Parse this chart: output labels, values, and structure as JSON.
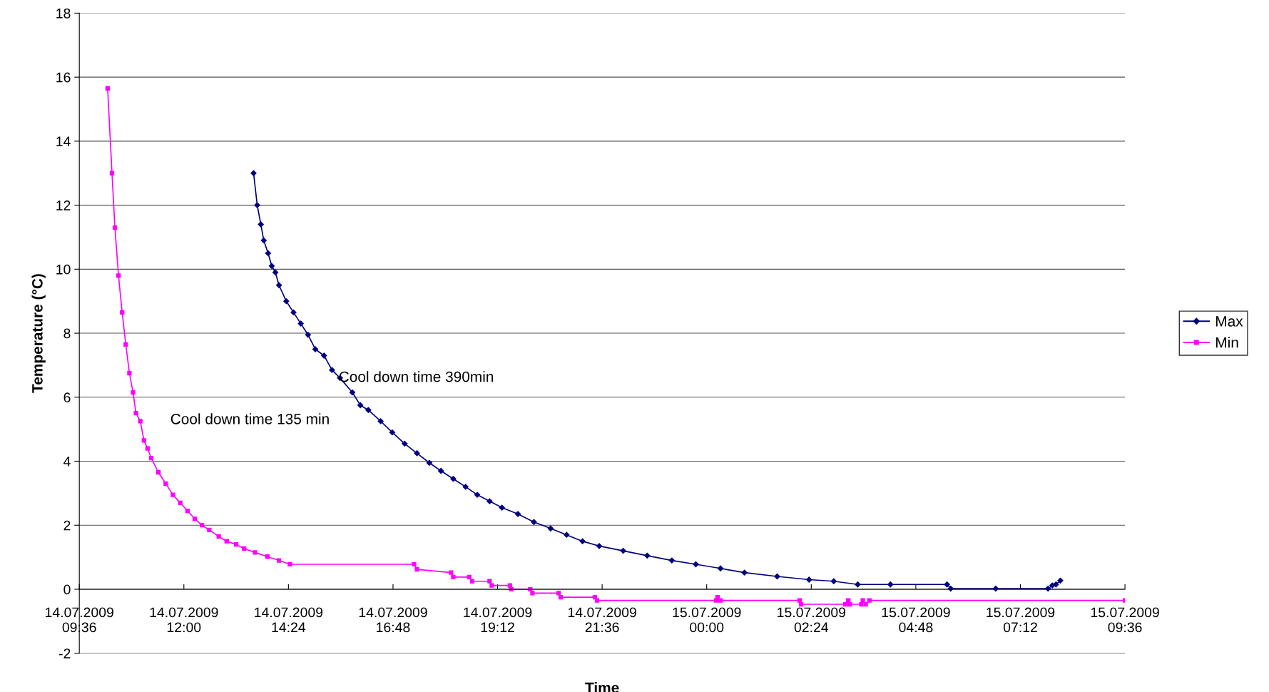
{
  "chart_data": {
    "type": "line",
    "xlabel": "Time",
    "ylabel": "Temperature (°C)",
    "annotations": [
      "Cool down time 390min",
      "Cool down time 135 min"
    ],
    "xlim": [
      "2009-07-14T09:36",
      "2009-07-15T09:36"
    ],
    "xticks": [
      {
        "value": "2009-07-14T09:36",
        "label": "14.07.2009\n09:36"
      },
      {
        "value": "2009-07-14T12:00",
        "label": "14.07.2009\n12:00"
      },
      {
        "value": "2009-07-14T14:24",
        "label": "14.07.2009\n14:24"
      },
      {
        "value": "2009-07-14T16:48",
        "label": "14.07.2009\n16:48"
      },
      {
        "value": "2009-07-14T19:12",
        "label": "14.07.2009\n19:12"
      },
      {
        "value": "2009-07-14T21:36",
        "label": "14.07.2009\n21:36"
      },
      {
        "value": "2009-07-15T00:00",
        "label": "15.07.2009\n00:00"
      },
      {
        "value": "2009-07-15T02:24",
        "label": "15.07.2009\n02:24"
      },
      {
        "value": "2009-07-15T04:48",
        "label": "15.07.2009\n04:48"
      },
      {
        "value": "2009-07-15T07:12",
        "label": "15.07.2009\n07:12"
      },
      {
        "value": "2009-07-15T09:36",
        "label": "15.07.2009\n09:36"
      }
    ],
    "ylim": [
      -2,
      18
    ],
    "yticks": [
      -2,
      0,
      2,
      4,
      6,
      8,
      10,
      12,
      14,
      16,
      18
    ],
    "grid": "y",
    "legend": "right",
    "series": [
      {
        "name": "Max",
        "color": "#000080",
        "marker": "diamond",
        "x": [
          "2009-07-14T13:36",
          "2009-07-14T13:41",
          "2009-07-14T13:46",
          "2009-07-14T13:50",
          "2009-07-14T13:56",
          "2009-07-14T14:01",
          "2009-07-14T14:06",
          "2009-07-14T14:11",
          "2009-07-14T14:21",
          "2009-07-14T14:31",
          "2009-07-14T14:41",
          "2009-07-14T14:51",
          "2009-07-14T15:01",
          "2009-07-14T15:13",
          "2009-07-14T15:24",
          "2009-07-14T15:35",
          "2009-07-14T15:52",
          "2009-07-14T16:03",
          "2009-07-14T16:14",
          "2009-07-14T16:31",
          "2009-07-14T16:47",
          "2009-07-14T17:04",
          "2009-07-14T17:21",
          "2009-07-14T17:38",
          "2009-07-14T17:54",
          "2009-07-14T18:11",
          "2009-07-14T18:28",
          "2009-07-14T18:44",
          "2009-07-14T19:01",
          "2009-07-14T19:18",
          "2009-07-14T19:40",
          "2009-07-14T20:02",
          "2009-07-14T20:25",
          "2009-07-14T20:47",
          "2009-07-14T21:09",
          "2009-07-14T21:32",
          "2009-07-14T22:05",
          "2009-07-14T22:38",
          "2009-07-14T23:12",
          "2009-07-14T23:45",
          "2009-07-15T00:19",
          "2009-07-15T00:52",
          "2009-07-15T01:37",
          "2009-07-15T02:21",
          "2009-07-15T02:55",
          "2009-07-15T03:28",
          "2009-07-15T04:13",
          "2009-07-15T05:31",
          "2009-07-15T05:36",
          "2009-07-15T06:38",
          "2009-07-15T07:50",
          "2009-07-15T07:56",
          "2009-07-15T08:01",
          "2009-07-15T08:07"
        ],
        "values": [
          13.0,
          12.0,
          11.4,
          10.9,
          10.5,
          10.1,
          9.9,
          9.5,
          9.0,
          8.65,
          8.3,
          7.95,
          7.5,
          7.3,
          6.85,
          6.6,
          6.15,
          5.75,
          5.6,
          5.25,
          4.9,
          4.55,
          4.25,
          3.95,
          3.7,
          3.45,
          3.2,
          2.95,
          2.75,
          2.55,
          2.35,
          2.1,
          1.9,
          1.7,
          1.5,
          1.35,
          1.2,
          1.05,
          0.9,
          0.78,
          0.65,
          0.52,
          0.4,
          0.3,
          0.25,
          0.15,
          0.15,
          0.15,
          0.02,
          0.02,
          0.02,
          0.12,
          0.15,
          0.27
        ]
      },
      {
        "name": "Min",
        "color": "#ff00ff",
        "marker": "square",
        "x": [
          "2009-07-14T10:15",
          "2009-07-14T10:21",
          "2009-07-14T10:25",
          "2009-07-14T10:30",
          "2009-07-14T10:35",
          "2009-07-14T10:40",
          "2009-07-14T10:45",
          "2009-07-14T10:50",
          "2009-07-14T10:54",
          "2009-07-14T11:00",
          "2009-07-14T11:05",
          "2009-07-14T11:10",
          "2009-07-14T11:15",
          "2009-07-14T11:25",
          "2009-07-14T11:35",
          "2009-07-14T11:45",
          "2009-07-14T11:55",
          "2009-07-14T12:05",
          "2009-07-14T12:15",
          "2009-07-14T12:25",
          "2009-07-14T12:35",
          "2009-07-14T12:48",
          "2009-07-14T12:59",
          "2009-07-14T13:12",
          "2009-07-14T13:23",
          "2009-07-14T13:38",
          "2009-07-14T13:55",
          "2009-07-14T14:11",
          "2009-07-14T14:26",
          "2009-07-14T17:17",
          "2009-07-14T17:21",
          "2009-07-14T18:08",
          "2009-07-14T18:11",
          "2009-07-14T18:33",
          "2009-07-14T18:37",
          "2009-07-14T19:01",
          "2009-07-14T19:04",
          "2009-07-14T19:29",
          "2009-07-14T19:31",
          "2009-07-14T19:57",
          "2009-07-14T20:00",
          "2009-07-14T20:36",
          "2009-07-14T20:39",
          "2009-07-14T21:26",
          "2009-07-14T21:29",
          "2009-07-15T00:13",
          "2009-07-15T00:15",
          "2009-07-15T00:19",
          "2009-07-15T02:08",
          "2009-07-15T02:10",
          "2009-07-15T03:11",
          "2009-07-15T03:15",
          "2009-07-15T03:17",
          "2009-07-15T03:33",
          "2009-07-15T03:35",
          "2009-07-15T03:39",
          "2009-07-15T03:44",
          "2009-07-15T09:36"
        ],
        "values": [
          15.65,
          13.0,
          11.3,
          9.8,
          8.65,
          7.65,
          6.75,
          6.15,
          5.5,
          5.25,
          4.65,
          4.4,
          4.1,
          3.65,
          3.3,
          2.95,
          2.7,
          2.45,
          2.2,
          2.0,
          1.85,
          1.65,
          1.5,
          1.4,
          1.27,
          1.15,
          1.02,
          0.9,
          0.78,
          0.78,
          0.62,
          0.52,
          0.38,
          0.38,
          0.25,
          0.25,
          0.12,
          0.12,
          0.0,
          0.0,
          -0.12,
          -0.12,
          -0.25,
          -0.25,
          -0.35,
          -0.35,
          -0.25,
          -0.35,
          -0.35,
          -0.47,
          -0.47,
          -0.35,
          -0.47,
          -0.47,
          -0.35,
          -0.47,
          -0.35,
          -0.35
        ]
      }
    ]
  }
}
